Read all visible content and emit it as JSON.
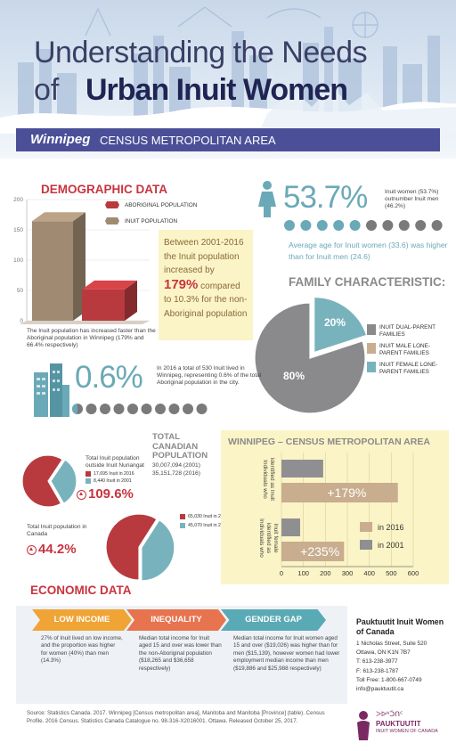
{
  "header": {
    "title_line1": "Understanding the Needs",
    "title_line2_prefix": "of",
    "title_line2_strong": "Urban Inuit Women",
    "banner_city": "Winnipeg",
    "banner_rest": "CENSUS METROPOLITAN AREA"
  },
  "demographic": {
    "heading": "DEMOGRAPHIC DATA",
    "legend_aboriginal": "ABORIGINAL POPULATION",
    "legend_inuit": "INUIT POPULATION",
    "caption": "The Inuit population has increased faster than the Aboriginal population in Winnipeg (179% and 66.4% respectively)",
    "callout_pre": "Between 2001-2016 the Inuit population increased by",
    "callout_pct": "179%",
    "callout_post": "compared to 10.3% for the non-Aboriginal population"
  },
  "women": {
    "pct": "53.7%",
    "text": "Inuit women (53.7%) outnumber Inuit men (46.2%)",
    "age_text": "Average age for Inuit women (33.6) was higher than for Inuit men (24.6)",
    "colors": {
      "women": "#6aa9b7",
      "men": "#7a7a7a"
    }
  },
  "family": {
    "heading": "FAMILY CHARACTERISTIC:",
    "legend": [
      "INUIT DUAL-PARENT FAMILIES",
      "INUIT MALE LONE-PARENT FAMILIES",
      "INUIT FEMALE LONE-PARENT FAMILIES"
    ],
    "slice_labels": [
      "80%",
      "20%"
    ]
  },
  "share": {
    "pct": "0.6%",
    "text": "In 2016 a total of 530 Inuit lived in Winnipeg, representing 0.6% of the total Aboriginal population in the city."
  },
  "total_canadian": {
    "heading_l1": "TOTAL",
    "heading_l2": "CANADIAN",
    "heading_l3": "POPULATION",
    "line_2001": "30,007,094 (2001)",
    "line_2016": "35,151,728 (2016)"
  },
  "outside_nunangat": {
    "label": "Total Inuit population outside Inuit Nunangat",
    "legend_2016": "17,695 Inuit in 2016",
    "legend_2001": "8,440 Inuit in 2001",
    "pct": "109.6%"
  },
  "in_canada": {
    "label": "Total Inuit population in Canada",
    "legend_2016": "65,030 Inuit in 2016",
    "legend_2001": "45,070 Inuit in 2001",
    "pct": "44.2%"
  },
  "wpg_chart_header": {
    "title": "WINNIPEG – CENSUS METROPOLITAN AREA",
    "cat1": [
      "Individuals who",
      "identified as Inuit"
    ],
    "cat2": [
      "Individuals who",
      "identified as",
      "Inuit female"
    ],
    "pct1": "+179%",
    "pct2": "+235%"
  },
  "economic": {
    "heading": "ECONOMIC DATA",
    "tabs": [
      {
        "label": "LOW INCOME",
        "text": "27% of Inuit lived on low income, and the proportion was higher for women (40%) than men (14.3%)"
      },
      {
        "label": "INEQUALITY",
        "text": "Median total income for Inuit aged 15 and over was lower than the non-Aboriginal population ($18,265 and $36,658 respectively)"
      },
      {
        "label": "GENDER GAP",
        "text": "Median total income for Inuit women aged 15 and over ($19,026) was higher than for men ($15,139), however women had lower employment median income than men ($19,886 and $25,988 respectively)"
      }
    ],
    "tab_colors": [
      "#f0a436",
      "#e8734f",
      "#5aaab5"
    ]
  },
  "contact": {
    "name": "Pauktuutit Inuit Women of Canada",
    "lines": [
      "1 Nicholas Street, Suite 520",
      "Ottawa, ON K1N 7B7",
      "T: 613-238-3977",
      "F: 613-238-1787",
      "Toll Free: 1-800-667-0749",
      "info@pauktuutit.ca"
    ]
  },
  "source": "Source: Statistics Canada. 2017. Winnipeg [Census metropolitan area], Manitoba and Manitoba [Province] (table). Census Profile. 2016 Census. Statistics Canada Catalogue no. 98-316-X2016001. Ottawa. Released October 25, 2017.",
  "logo": {
    "syllabics": "ᐳᐅᒃᑑᑎᑦ",
    "name": "PAUKTUUTIT",
    "sub": "INUIT WOMEN OF CANADA"
  },
  "chart_data": [
    {
      "type": "bar",
      "categories": [
        "INUIT POPULATION",
        "ABORIGINAL POPULATION"
      ],
      "values": [
        179,
        66.4
      ],
      "ylim": [
        0,
        200
      ],
      "yticks": [
        0,
        50,
        100,
        150,
        200
      ],
      "colors": [
        "#a08a72",
        "#b83a3e"
      ]
    },
    {
      "type": "pie",
      "labels": [
        "INUIT DUAL-PARENT FAMILIES",
        "INUIT MALE LONE-PARENT FAMILIES",
        "INUIT FEMALE LONE-PARENT FAMILIES"
      ],
      "values": [
        80,
        0,
        20
      ],
      "colors": [
        "#8a8a8c",
        "#c8ad8e",
        "#78b3bd"
      ]
    },
    {
      "type": "pie",
      "labels": [
        "17,695 Inuit in 2016",
        "8,440 Inuit in 2001"
      ],
      "values": [
        17695,
        8440
      ],
      "colors": [
        "#b83a3e",
        "#78b3bd"
      ]
    },
    {
      "type": "pie",
      "labels": [
        "65,030 Inuit in 2016",
        "45,070 Inuit in 2001"
      ],
      "values": [
        65030,
        45070
      ],
      "colors": [
        "#b83a3e",
        "#78b3bd"
      ]
    },
    {
      "type": "bar",
      "orientation": "horizontal",
      "series": [
        {
          "name": "in 2016",
          "values": [
            530,
            285
          ],
          "color": "#c8ad8e"
        },
        {
          "name": "in 2001",
          "values": [
            190,
            85
          ],
          "color": "#8f8f92"
        }
      ],
      "xlim": [
        0,
        600
      ],
      "xticks": [
        0,
        100,
        200,
        300,
        400,
        500,
        600
      ]
    }
  ]
}
